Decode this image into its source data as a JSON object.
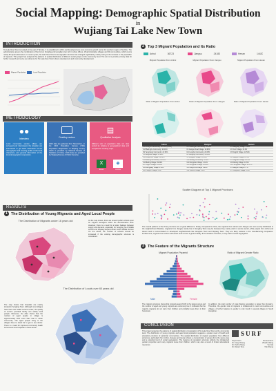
{
  "title": {
    "line1_bold": "Social Mapping:",
    "line1_rest": "Demographic Spatial Distribution",
    "line2": "in",
    "line3": "Wujiang Tai Lake New Town"
  },
  "colors": {
    "teal": "#2bb3a9",
    "pink": "#e84a8a",
    "purple": "#b58ad6",
    "blue": "#3b6fb6",
    "dark": "#4d4d4d"
  },
  "intro": {
    "heading": "INTRODUCTION",
    "body": "Tai Lake New Town is located at the east of Tai lake. It is established in 2012 and developed as a new economic growth center for southern region of Suzhou. The administrative area is the combination of the former Songling and Henglian town with 4 urban offices, 18 administrative villages and 32 communities, which covers nearly 52 square kilometers. In recent years, Tai Lake New Town's demographic structure has changed significantly, mainly owing to the increase in the population of migrants. This project has analyzed the patterns of spatial distribution of different social groups at the community level. The aim is to provide primary data for further research and serve as reference for Tai Lake New Town's future development and community development.",
    "legend": [
      "Migrant Population",
      "Local Population"
    ]
  },
  "method": {
    "heading": "METHODOLOGY",
    "steps": [
      {
        "label": "Interview",
        "icon": "people-icon",
        "text": "Local community service offices are surveyed and interviewed, the situation are interviewed to get basic information of the demographic and housing profile of the local characters, and general information of the local demographic composition."
      },
      {
        "label": "Desktop review",
        "icon": "monitor-icon",
        "text": "2016 data are gathered from Taicanshan, or the 2010 Population Census (TPA) Population Registration of Wujiang County which is provided by National Bureau of Statistics of China. 2016 data are provided by Wujiang Bureau of Public Security."
      },
      {
        "label": "Qualitative Analysis",
        "icon": "chart-icon",
        "text": "Different sets of population data are data sorted by relating to geographical data and compiled for creating maps."
      }
    ],
    "tools": [
      "Excel",
      "ArcGis"
    ]
  },
  "results": {
    "heading": "RESULTS",
    "s1": {
      "title": "The Distribution of Young Migrants and Aged Local People",
      "map1_title": "The Distribution of Migrants under 16 years old",
      "map1_text": "As the map shows, there are several public schools open for migrant teenagers within the administrative area. However, there is a need for a better balance between supply and demand, especially for Songling No.1 Middle school and Wujiang Experimental Junior Middle School. On the whole, the number of schools should be increased if the existing demographic structure is considered.",
      "map2_title": "The Distribution of Locals over 60 years old",
      "map2_text": "The map shows that hospitals are mainly located in Songling Town. Although most villages have their own health service center, the quality of service provided hardly can satisfy local people. Moreover, the data shows that the number of aged people in village is approximately 30% more than that in urban community. The aged people living in the villages have to travel far to get to see doctor. There is a need for improved community health service and new hospitals in these areas."
    },
    "s2": {
      "title": "Top 3 Migrant Population and Its Ratio",
      "provinces": [
        {
          "name": "Anhui",
          "value": "36723",
          "color": "#2bb3a9"
        },
        {
          "name": "Jiangsu",
          "value": "24183",
          "color": "#e84a8a"
        },
        {
          "name": "Henan",
          "value": "14420",
          "color": "#b58ad6"
        }
      ],
      "map_captions": [
        "Migrant Population From Anhui",
        "Migrant Population From Jiangsu",
        "Migrant Population From Henan",
        "Ratio of Migrant Population From Anhui",
        "Ratio of Migrant Population From Jiangsu",
        "Ratio of Migrant Population From Henan"
      ],
      "table_headers": [
        "Anhui",
        "Jiangsu",
        "Henan"
      ],
      "table_rows": [
        [
          "C13 Longhu Community: 32.31% (1:100)",
          "C15 Beilinghe Community: 31.02%",
          "C5 Jiangxing Village: 3.50%"
        ],
        [
          "C15 Beilinghe Community: 26.01%",
          "C6 Jiangsu Road Village: 20.98%",
          "C6 Yunzi Village: 31.3%"
        ],
        [
          "C9 Yangcheng Community: 21.51%",
          "C13 Longhu Community: 22.05%",
          "C9 Tongzhi Village: 14.54%"
        ],
        [
          "V1 Gengsha Village: 36.14%",
          "C4 Songling Community: 15.84%",
          ""
        ],
        [
          "V30 Longzhou Village: 31.14%",
          "V1 Gengsha Village: 18.59%",
          "C2 Jiangxin Village: 25.5%"
        ],
        [
          "V19 Beiling Community: 34.01%",
          "V19 Beiling Community: 4.14%",
          "C3 Tangbian Village: 21.4%"
        ],
        [
          "V13 Beiling Village: 29.33%",
          "V10 Dongshan Village: 4.12%",
          "V15 Beiling Village: 14.5%"
        ],
        [
          "V8 Tongzhi Village: 25.64%",
          "V23 Songshan Village: 16.22%",
          "V23 Songshan Village: 10.37%"
        ],
        [
          "V24 Dongjiang Village: 4.33%",
          "V25 Longzhou Village: 2.90%",
          "C1 Jiangxin Village: 2.7%"
        ],
        [
          "V20 Tongzhi Village: 3.4%",
          "V11 Zhenze Village: 3.2%",
          "C7 Dongshan Village: 2.6%"
        ]
      ],
      "scatter_title": "Scatter Diagram of Top 3 Migrant Provinces",
      "scatter_text": "The overall patterns of the three provinces are of great difference. Firstly, Compared to Anhui, the migrants from Henan and Jiangsu are more evenly distributed in the neighborhood. Besides, migrants from Jiangsu mainly live in Songling Town may be because they mainly work in service sector, while people from Anhui and Henan tend to concentrated on developed neighborhoods like Hengtian Town and Wujiang Town. They are likely workers in the manufacturing companies. Furthermore, migrants from Anhui and Henan tend to have a great mobility. If the situation continues, it may lead to social segregation."
    },
    "s3": {
      "title": "The Feature of the Migrants Structure",
      "pyramid_title": "Migrant Population Pyramid",
      "genders": [
        "Male",
        "Female"
      ],
      "gender_map_title": "Ratio of Migrant Gender Ratio",
      "text1": "The migrants structure shows that migrants aged 20-30 is the largest group and the number of aged and young migrants are extremely low. It indicates that the majority migrants do not carry their children and probably leave them in their hometown.",
      "text2": "In addition, the total number of male floating population is larger than female's. Therefore, the gender ratio of migrants is imbalanced in most communities and villages. A further balance in gender is only found in several villages in South Hengshan."
    },
    "pyramid": {
      "age_groups": [
        "0-4",
        "5-9",
        "10-14",
        "15-19",
        "20-24",
        "25-29",
        "30-34",
        "35-39",
        "40-44",
        "45-49",
        "50-54",
        "55-59",
        "60-64",
        "65-69",
        "70-74",
        "75-79",
        "80+"
      ],
      "male": [
        1.5,
        1.2,
        1.0,
        2.5,
        7.0,
        9.5,
        8.0,
        6.0,
        5.0,
        4.0,
        3.0,
        2.0,
        1.2,
        0.8,
        0.5,
        0.3,
        0.2
      ],
      "female": [
        1.4,
        1.1,
        0.9,
        2.3,
        6.0,
        8.0,
        6.5,
        5.0,
        4.2,
        3.2,
        2.3,
        1.5,
        1.0,
        0.7,
        0.4,
        0.3,
        0.2
      ]
    }
  },
  "conclusion": {
    "heading": "CONCLUSION",
    "body": "This project analyzes the patterns of spatial distribution of population of Tai Lake New Town at the community level. The distribution of young migrants and aged local population suggests a greater need of health and education provision of particular communities. The spatial distribution of migrant population from different provinces, particularly from Anhui, Jiangsu and Henan shows a concentration of groups from the same area and a potential trend of social segregation. The features of population structure reflects the imbalanced gender proportion and many migrants leave their children, which may also a result of limited educational resources.",
    "logo": "SURF",
    "credits": [
      [
        "Supervisors",
        "Researchers"
      ],
      [
        "Dr. Fang Chiang",
        "Zhaolin Wang"
      ],
      [
        "Dr. Puzhi Zhang",
        "Yue Ma"
      ],
      [
        "Dr. Robert Tony",
        "Yilin Zhang"
      ]
    ]
  }
}
